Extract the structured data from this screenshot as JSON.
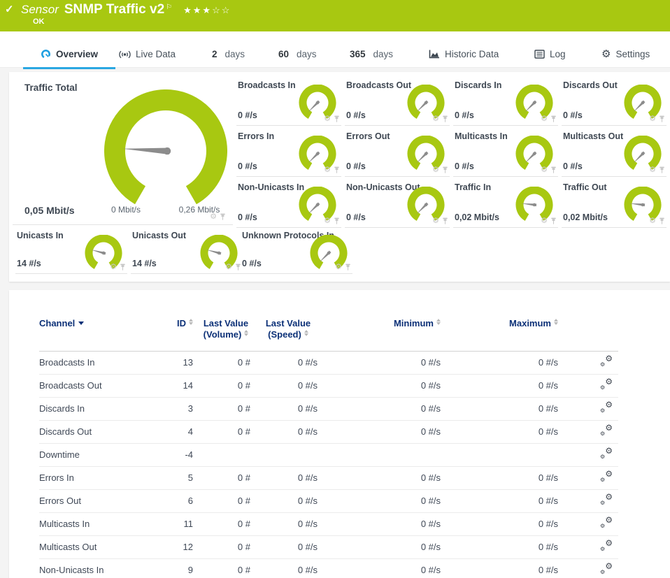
{
  "header": {
    "category": "Sensor",
    "title": "SNMP Traffic v2",
    "status": "OK",
    "rating_display": "★★★☆☆",
    "check_icon": "✓",
    "flag_icon": "⚐"
  },
  "tabs": {
    "overview": "Overview",
    "live_data": "Live Data",
    "d2_num": "2",
    "d2_unit": "days",
    "d60_num": "60",
    "d60_unit": "days",
    "d365_num": "365",
    "d365_unit": "days",
    "historic": "Historic Data",
    "log": "Log",
    "settings": "Settings"
  },
  "gauges": {
    "main": {
      "title": "Traffic Total",
      "value": "0,05 Mbit/s",
      "min_label": "0 Mbit/s",
      "max_label": "0,26 Mbit/s",
      "fraction": 0.21
    },
    "items": [
      {
        "title": "Broadcasts In",
        "value": "0 #/s",
        "fraction": 0.05
      },
      {
        "title": "Broadcasts Out",
        "value": "0 #/s",
        "fraction": 0.05
      },
      {
        "title": "Discards In",
        "value": "0 #/s",
        "fraction": 0.05
      },
      {
        "title": "Discards Out",
        "value": "0 #/s",
        "fraction": 0.05
      },
      {
        "title": "Errors In",
        "value": "0 #/s",
        "fraction": 0.05
      },
      {
        "title": "Errors Out",
        "value": "0 #/s",
        "fraction": 0.05
      },
      {
        "title": "Multicasts In",
        "value": "0 #/s",
        "fraction": 0.05
      },
      {
        "title": "Multicasts Out",
        "value": "0 #/s",
        "fraction": 0.05
      },
      {
        "title": "Non-Unicasts In",
        "value": "0 #/s",
        "fraction": 0.05
      },
      {
        "title": "Non-Unicasts Out",
        "value": "0 #/s",
        "fraction": 0.05
      },
      {
        "title": "Traffic In",
        "value": "0,02 Mbit/s",
        "fraction": 0.22
      },
      {
        "title": "Traffic Out",
        "value": "0,02 Mbit/s",
        "fraction": 0.22
      },
      {
        "title": "Unicasts In",
        "value": "14 #/s",
        "fraction": 0.25
      },
      {
        "title": "Unicasts Out",
        "value": "14 #/s",
        "fraction": 0.25
      },
      {
        "title": "Unknown Protocols In",
        "value": "0 #/s",
        "fraction": 0.05
      }
    ]
  },
  "table": {
    "columns": {
      "channel": "Channel",
      "id": "ID",
      "volume": "Last Value (Volume)",
      "speed": "Last Value (Speed)",
      "minimum": "Minimum",
      "maximum": "Maximum"
    },
    "rows": [
      {
        "channel": "Broadcasts In",
        "id": "13",
        "volume": "0 #",
        "speed": "0 #/s",
        "minimum": "0 #/s",
        "maximum": "0 #/s"
      },
      {
        "channel": "Broadcasts Out",
        "id": "14",
        "volume": "0 #",
        "speed": "0 #/s",
        "minimum": "0 #/s",
        "maximum": "0 #/s"
      },
      {
        "channel": "Discards In",
        "id": "3",
        "volume": "0 #",
        "speed": "0 #/s",
        "minimum": "0 #/s",
        "maximum": "0 #/s"
      },
      {
        "channel": "Discards Out",
        "id": "4",
        "volume": "0 #",
        "speed": "0 #/s",
        "minimum": "0 #/s",
        "maximum": "0 #/s"
      },
      {
        "channel": "Downtime",
        "id": "-4",
        "volume": "",
        "speed": "",
        "minimum": "",
        "maximum": ""
      },
      {
        "channel": "Errors In",
        "id": "5",
        "volume": "0 #",
        "speed": "0 #/s",
        "minimum": "0 #/s",
        "maximum": "0 #/s"
      },
      {
        "channel": "Errors Out",
        "id": "6",
        "volume": "0 #",
        "speed": "0 #/s",
        "minimum": "0 #/s",
        "maximum": "0 #/s"
      },
      {
        "channel": "Multicasts In",
        "id": "11",
        "volume": "0 #",
        "speed": "0 #/s",
        "minimum": "0 #/s",
        "maximum": "0 #/s"
      },
      {
        "channel": "Multicasts Out",
        "id": "12",
        "volume": "0 #",
        "speed": "0 #/s",
        "minimum": "0 #/s",
        "maximum": "0 #/s"
      },
      {
        "channel": "Non-Unicasts In",
        "id": "9",
        "volume": "0 #",
        "speed": "0 #/s",
        "minimum": "0 #/s",
        "maximum": "0 #/s"
      }
    ]
  },
  "colors": {
    "status_green": "#a8c811",
    "tab_underline_blue": "#2aa7e2",
    "gauge_icon_blue": "#1f9fe0",
    "table_header_navy": "#0b3077",
    "needle_gray": "#8c8c8c",
    "icon_gray": "#c6c6c6"
  }
}
